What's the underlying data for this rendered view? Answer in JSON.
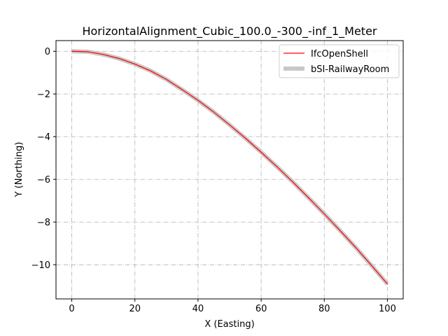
{
  "chart_data": {
    "type": "line",
    "title": "HorizontalAlignment_Cubic_100.0_-300_-inf_1_Meter",
    "xlabel": "X (Easting)",
    "ylabel": "Y (Northing)",
    "xlim": [
      -5,
      105
    ],
    "ylim": [
      -11.6,
      0.5
    ],
    "xticks": [
      0,
      20,
      40,
      60,
      80,
      100
    ],
    "yticks": [
      0,
      -2,
      -4,
      -6,
      -8,
      -10
    ],
    "xtick_labels": [
      "0",
      "20",
      "40",
      "60",
      "80",
      "100"
    ],
    "ytick_labels": [
      "0",
      "−2",
      "−4",
      "−6",
      "−8",
      "−10"
    ],
    "grid": true,
    "legend_position": "top-right",
    "series": [
      {
        "name": "IfcOpenShell",
        "color": "#ff0000",
        "x": [
          0,
          5,
          10,
          15,
          20,
          25,
          30,
          35,
          40,
          45,
          50,
          55,
          60,
          65,
          70,
          75,
          80,
          85,
          90,
          95,
          100
        ],
        "y": [
          0,
          -0.02,
          -0.15,
          -0.34,
          -0.6,
          -0.92,
          -1.32,
          -1.8,
          -2.3,
          -2.85,
          -3.45,
          -4.07,
          -4.73,
          -5.41,
          -6.12,
          -6.86,
          -7.62,
          -8.4,
          -9.2,
          -10.04,
          -10.9
        ]
      },
      {
        "name": "bSI-RailwayRoom",
        "color": "#c8c8c8",
        "x": [
          0,
          5,
          10,
          15,
          20,
          25,
          30,
          35,
          40,
          45,
          50,
          55,
          60,
          65,
          70,
          75,
          80,
          85,
          90,
          95,
          100
        ],
        "y": [
          0,
          -0.02,
          -0.15,
          -0.34,
          -0.6,
          -0.92,
          -1.32,
          -1.8,
          -2.3,
          -2.85,
          -3.45,
          -4.07,
          -4.73,
          -5.41,
          -6.12,
          -6.86,
          -7.62,
          -8.4,
          -9.2,
          -10.04,
          -10.9
        ]
      }
    ]
  }
}
